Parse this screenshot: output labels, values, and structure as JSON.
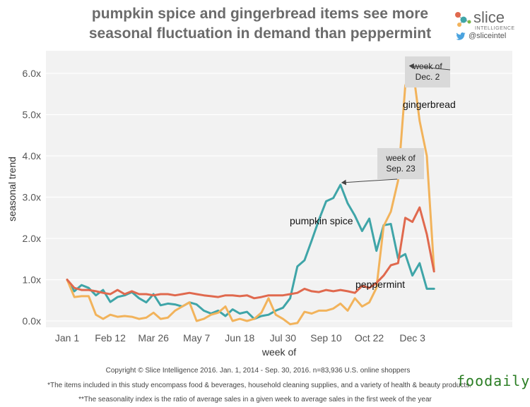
{
  "title_line1": "pumpkin spice and gingerbread items see more",
  "title_line2": "seasonal fluctuation in demand than peppermint",
  "logo": {
    "name": "slice",
    "subtitle": "INTELLIGENCE",
    "handle": "@sliceintel"
  },
  "footer": {
    "copyright": "Copyright © Slice Intelligence 2016. Jan. 1, 2014 - Sep. 30, 2016. n=83,936 U.S. online shoppers",
    "note1": "*The items included in this study encompass food & beverages, household cleaning supplies, and a variety of health & beauty products.",
    "note2": "**The seasonality index is the ratio of average sales in a given week to average sales in the first week of the year"
  },
  "watermark": "foodaily",
  "chart_data": {
    "type": "line",
    "xlabel": "week of",
    "ylabel": "seasonal trend",
    "ylim": [
      0,
      6.3
    ],
    "yticks": [
      "0.0x",
      "1.0x",
      "2.0x",
      "3.0x",
      "4.0x",
      "5.0x",
      "6.0x"
    ],
    "xtick_labels": [
      "Jan 1",
      "Feb 12",
      "Mar 26",
      "May 7",
      "Jun 18",
      "Jul 30",
      "Sep 10",
      "Oct 22",
      "Dec 3"
    ],
    "xtick_weeks": [
      0,
      6,
      12,
      18,
      24,
      30,
      36,
      42,
      48
    ],
    "grid": "horizontal",
    "series": [
      {
        "name": "pumpkin spice",
        "color": "#3fa5a8",
        "values": [
          1.0,
          0.72,
          0.87,
          0.8,
          0.62,
          0.75,
          0.46,
          0.58,
          0.62,
          0.7,
          0.55,
          0.45,
          0.65,
          0.38,
          0.42,
          0.4,
          0.35,
          0.45,
          0.4,
          0.25,
          0.18,
          0.25,
          0.12,
          0.28,
          0.18,
          0.22,
          0.05,
          0.12,
          0.15,
          0.25,
          0.32,
          0.55,
          1.32,
          1.47,
          1.95,
          2.45,
          2.9,
          2.98,
          3.3,
          2.85,
          2.55,
          2.18,
          2.48,
          1.7,
          2.32,
          2.35,
          1.52,
          1.62,
          1.1,
          1.4,
          0.78,
          0.78
        ]
      },
      {
        "name": "gingerbread",
        "color": "#f2b35b",
        "values": [
          1.0,
          0.58,
          0.6,
          0.6,
          0.15,
          0.05,
          0.15,
          0.1,
          0.12,
          0.1,
          0.05,
          0.08,
          0.2,
          0.05,
          0.08,
          0.25,
          0.35,
          0.45,
          0.0,
          0.05,
          0.15,
          0.2,
          0.35,
          0.0,
          0.05,
          0.0,
          0.05,
          0.2,
          0.55,
          0.15,
          0.05,
          -0.08,
          -0.05,
          0.22,
          0.18,
          0.25,
          0.25,
          0.3,
          0.42,
          0.25,
          0.55,
          0.35,
          0.45,
          0.8,
          2.3,
          2.65,
          3.4,
          5.7,
          6.2,
          4.85,
          4.0,
          1.25
        ]
      },
      {
        "name": "peppermint",
        "color": "#e0694e",
        "values": [
          1.0,
          0.8,
          0.75,
          0.75,
          0.72,
          0.68,
          0.65,
          0.75,
          0.65,
          0.72,
          0.65,
          0.65,
          0.62,
          0.65,
          0.65,
          0.62,
          0.65,
          0.68,
          0.65,
          0.62,
          0.6,
          0.58,
          0.62,
          0.62,
          0.6,
          0.62,
          0.55,
          0.58,
          0.62,
          0.62,
          0.62,
          0.65,
          0.68,
          0.78,
          0.72,
          0.7,
          0.75,
          0.72,
          0.75,
          0.72,
          0.68,
          0.85,
          0.8,
          0.92,
          1.1,
          1.35,
          1.4,
          2.5,
          2.4,
          2.75,
          2.1,
          1.2
        ]
      }
    ],
    "annotations": [
      {
        "text_line1": "week of",
        "text_line2": "Sep. 23",
        "week": 38,
        "value": 3.3
      },
      {
        "text_line1": "week of",
        "text_line2": "Dec. 2",
        "week": 48,
        "value": 6.2
      }
    ]
  }
}
